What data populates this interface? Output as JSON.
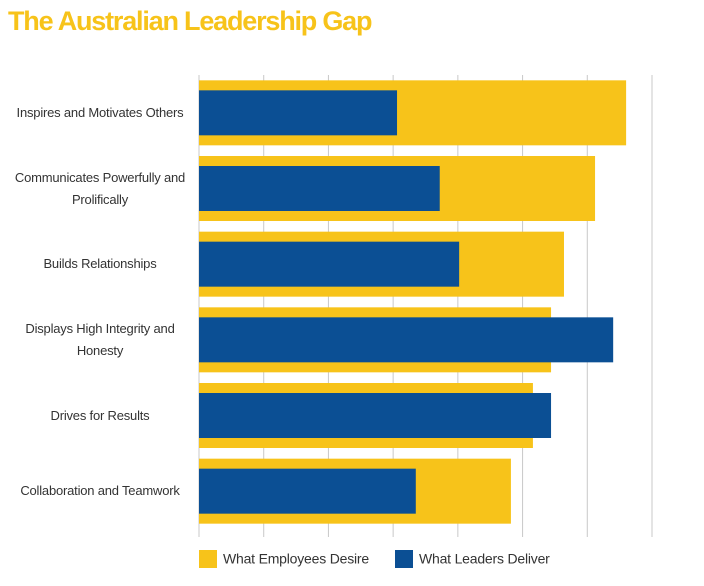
{
  "chart_data": {
    "type": "bar",
    "orientation": "horizontal",
    "title": "The Australian Leadership Gap",
    "categories": [
      "Inspires and Motivates Others",
      "Communicates Powerfully and Prolifically",
      "Builds Relationships",
      "Displays High Integrity and Honesty",
      "Drives for Results",
      "Collaboration and Teamwork"
    ],
    "series": [
      {
        "name": "What Employees Desire",
        "color": "#f7c31a",
        "values": [
          6.6,
          6.12,
          5.64,
          5.44,
          5.16,
          4.82
        ]
      },
      {
        "name": "What Leaders Deliver",
        "color": "#0b4f94",
        "values": [
          3.06,
          3.72,
          4.02,
          6.4,
          5.44,
          3.35
        ]
      }
    ],
    "xlim": [
      0,
      7
    ],
    "xticks": [
      0,
      1,
      2,
      3,
      4,
      5,
      6,
      7
    ],
    "grid": true,
    "legend": "bottom"
  }
}
